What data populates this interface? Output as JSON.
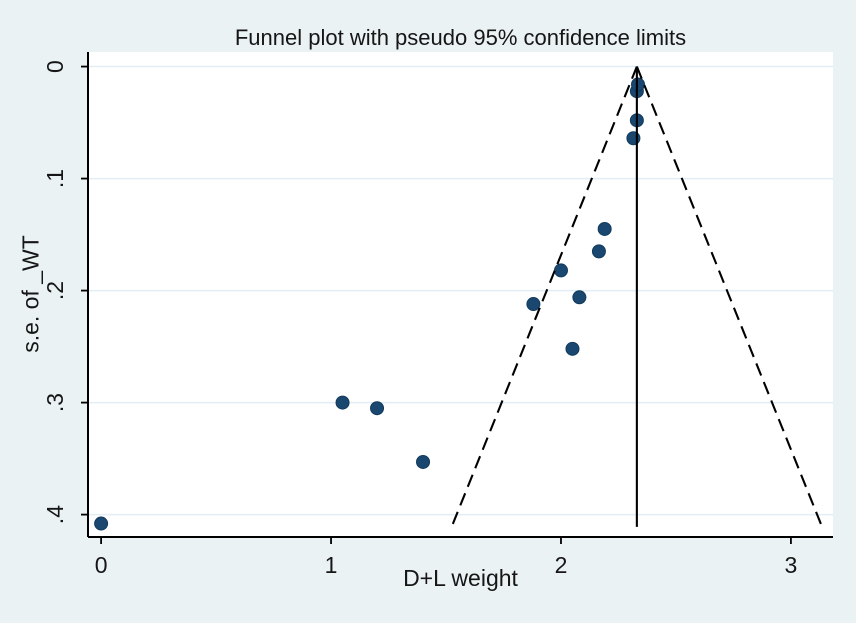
{
  "figure": {
    "title": "Funnel plot with pseudo 95% confidence limits"
  },
  "colors": {
    "background": "#eaf2f3",
    "plot_background": "#ffffff",
    "grid": "#e2eef3",
    "axis": "#000000",
    "text": "#161616",
    "marker_fill": "#1a476f",
    "marker_stroke": "#123a5c",
    "pooled_line": "#000000",
    "ci_line": "#000000"
  },
  "chart_data": {
    "type": "scatter",
    "title": "Funnel plot with pseudo 95% confidence limits",
    "xlabel": "D+L weight",
    "ylabel": "s.e. of _WT",
    "grid": "horizontal",
    "legend": "none",
    "x_axis": {
      "range": [
        -0.057,
        3.183
      ],
      "ticks": [
        0,
        1,
        2,
        3
      ],
      "tick_labels": [
        "0",
        "1",
        "2",
        "3"
      ]
    },
    "y_axis": {
      "range": [
        -0.013,
        0.42
      ],
      "inverted": true,
      "rotated_tick_labels": true,
      "ticks": [
        0,
        0.1,
        0.2,
        0.3,
        0.4
      ],
      "tick_labels": [
        "0",
        ".1",
        ".2",
        ".3",
        ".4"
      ]
    },
    "funnel": {
      "pooled_effect_x": 2.33,
      "ci_multiplier": 1.96,
      "max_se": 0.411,
      "ci_line_style": "dashed",
      "pooled_line_style": "solid"
    },
    "points": [
      {
        "x": 0.0,
        "se": 0.408
      },
      {
        "x": 1.05,
        "se": 0.3
      },
      {
        "x": 1.2,
        "se": 0.305
      },
      {
        "x": 1.4,
        "se": 0.353
      },
      {
        "x": 1.88,
        "se": 0.212
      },
      {
        "x": 2.0,
        "se": 0.182
      },
      {
        "x": 2.05,
        "se": 0.252
      },
      {
        "x": 2.08,
        "se": 0.206
      },
      {
        "x": 2.165,
        "se": 0.165
      },
      {
        "x": 2.19,
        "se": 0.145
      },
      {
        "x": 2.315,
        "se": 0.064
      },
      {
        "x": 2.33,
        "se": 0.048
      },
      {
        "x": 2.33,
        "se": 0.022
      },
      {
        "x": 2.335,
        "se": 0.016
      }
    ]
  }
}
